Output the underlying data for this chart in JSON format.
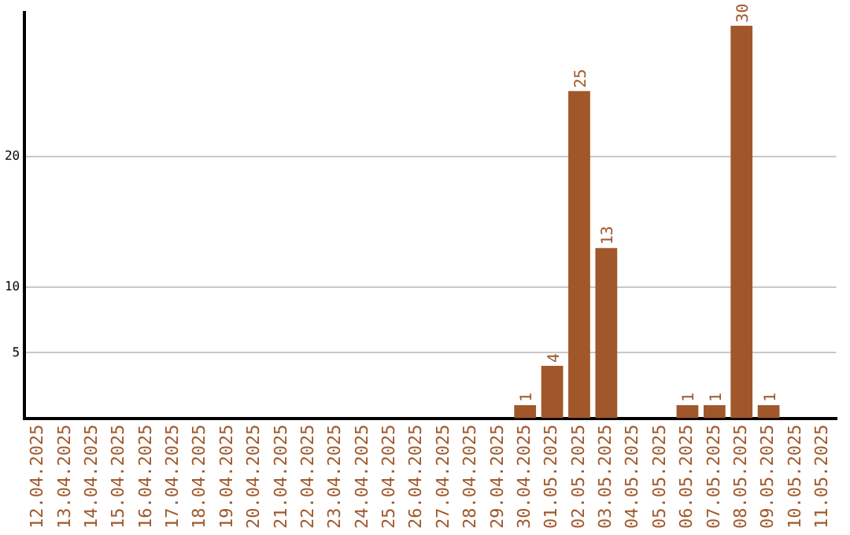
{
  "chart_data": {
    "type": "bar",
    "categories": [
      "12.04.2025",
      "13.04.2025",
      "14.04.2025",
      "15.04.2025",
      "16.04.2025",
      "17.04.2025",
      "18.04.2025",
      "19.04.2025",
      "20.04.2025",
      "21.04.2025",
      "22.04.2025",
      "23.04.2025",
      "24.04.2025",
      "25.04.2025",
      "26.04.2025",
      "27.04.2025",
      "28.04.2025",
      "29.04.2025",
      "30.04.2025",
      "01.05.2025",
      "02.05.2025",
      "03.05.2025",
      "04.05.2025",
      "05.05.2025",
      "06.05.2025",
      "07.05.2025",
      "08.05.2025",
      "09.05.2025",
      "10.05.2025",
      "11.05.2025"
    ],
    "values": [
      0,
      0,
      0,
      0,
      0,
      0,
      0,
      0,
      0,
      0,
      0,
      0,
      0,
      0,
      0,
      0,
      0,
      0,
      1,
      4,
      25,
      13,
      0,
      0,
      1,
      1,
      30,
      1,
      0,
      0
    ],
    "value_labels": [
      null,
      null,
      null,
      null,
      null,
      null,
      null,
      null,
      null,
      null,
      null,
      null,
      null,
      null,
      null,
      null,
      null,
      null,
      "1",
      "4",
      "25",
      "13",
      null,
      null,
      "1",
      "1",
      "30",
      "1",
      null,
      null
    ],
    "color": "#a0582a",
    "ylim": [
      0,
      31
    ],
    "yticks": [
      5,
      10,
      20
    ],
    "grid": "y",
    "legend": false
  }
}
